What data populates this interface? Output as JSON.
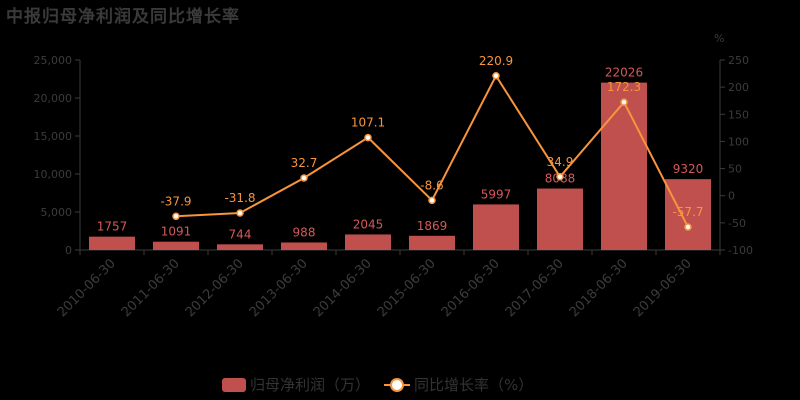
{
  "title": "中报归母净利润及同比增长率",
  "colors": {
    "bar": "#c0504d",
    "bar_label": "#d4585a",
    "line": "#f7943c",
    "axis_text": "#3c3c3c"
  },
  "chart_data": {
    "type": "bar+line",
    "title": "中报归母净利润及同比增长率",
    "categories": [
      "2010-06-30",
      "2011-06-30",
      "2012-06-30",
      "2013-06-30",
      "2014-06-30",
      "2015-06-30",
      "2016-06-30",
      "2017-06-30",
      "2018-06-30",
      "2019-06-30"
    ],
    "series": [
      {
        "name": "归母净利润（万）",
        "type": "bar",
        "axis": "left",
        "values": [
          1757,
          1091,
          744,
          988,
          2045,
          1869,
          5997,
          8088,
          22026,
          9320
        ]
      },
      {
        "name": "同比增长率（%）",
        "type": "line",
        "axis": "right",
        "values": [
          null,
          -37.9,
          -31.8,
          32.7,
          107.1,
          -8.6,
          220.9,
          34.9,
          172.3,
          -57.7
        ]
      }
    ],
    "left_axis": {
      "ylim": [
        0,
        25000
      ],
      "ticks": [
        "0",
        "5,000",
        "10,000",
        "15,000",
        "20,000",
        "25,000"
      ]
    },
    "right_axis": {
      "label": "%",
      "ylim": [
        -100,
        250
      ],
      "ticks": [
        "-100",
        "-50",
        "0",
        "50",
        "100",
        "150",
        "200",
        "250"
      ]
    },
    "legend_position": "bottom",
    "grid": false
  },
  "legend": {
    "bar_label": "归母净利润（万）",
    "line_label": "同比增长率（%）"
  }
}
